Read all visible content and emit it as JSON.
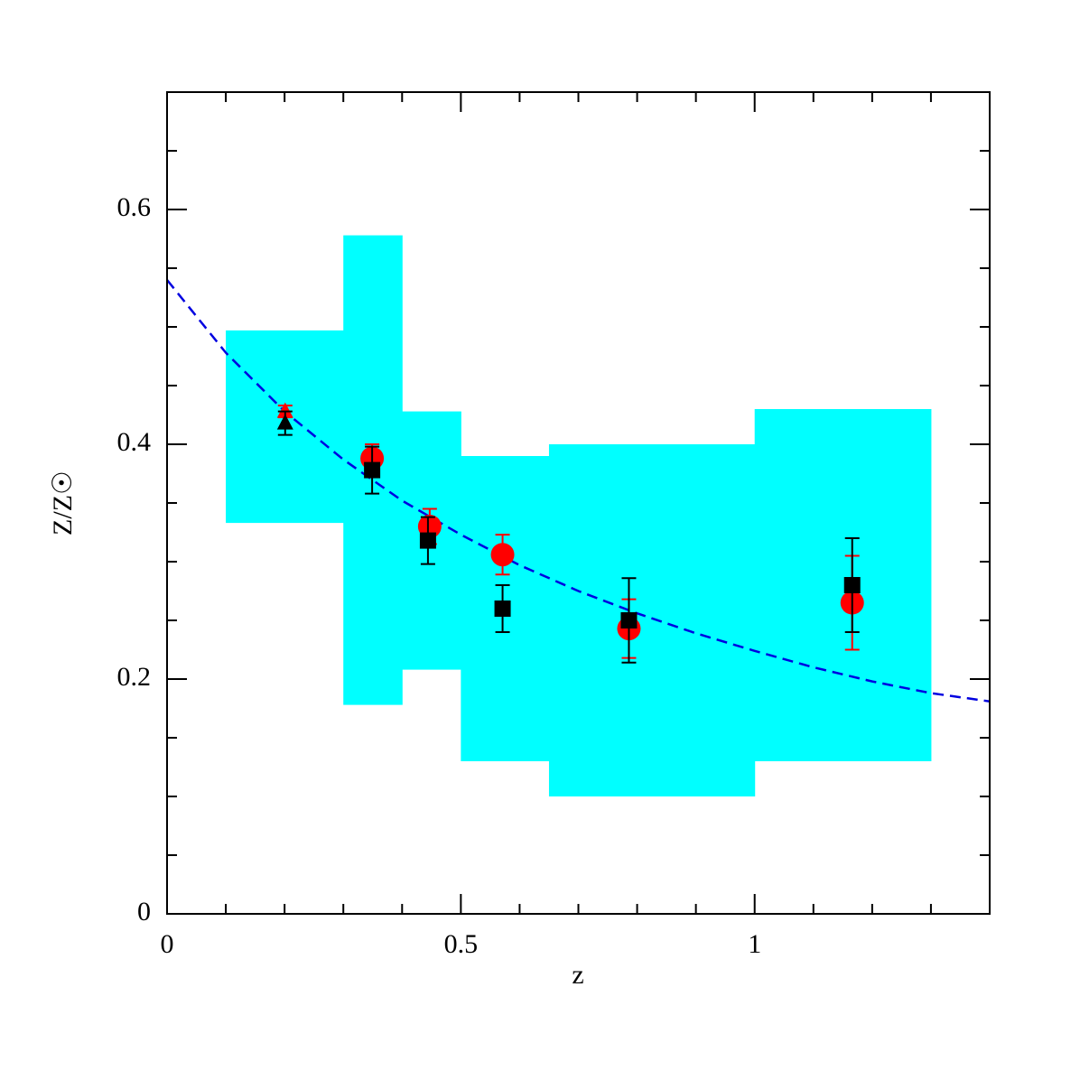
{
  "chart_data": {
    "type": "scatter",
    "xlabel": "z",
    "ylabel": "Z/Z☉",
    "xlim": [
      0,
      1.4
    ],
    "ylim": [
      0,
      0.7
    ],
    "xticks": [
      0,
      0.5,
      1
    ],
    "yticks": [
      0,
      0.2,
      0.4,
      0.6
    ],
    "xticks_minor": [
      0.1,
      0.2,
      0.3,
      0.4,
      0.6,
      0.7,
      0.8,
      0.9,
      1.1,
      1.2,
      1.3
    ],
    "yticks_minor": [
      0.05,
      0.1,
      0.15,
      0.25,
      0.3,
      0.35,
      0.45,
      0.5,
      0.55,
      0.65
    ],
    "band": {
      "color": "#00ffff",
      "bins": [
        0.1,
        0.3,
        0.4,
        0.5,
        0.65,
        1.0,
        1.3
      ],
      "lows": [
        0.333,
        0.178,
        0.208,
        0.13,
        0.1,
        0.13
      ],
      "highs": [
        0.497,
        0.578,
        0.428,
        0.39,
        0.4,
        0.43
      ]
    },
    "series": [
      {
        "type": "line",
        "color": "#0000e0",
        "dashed": true,
        "x": [
          0,
          0.1,
          0.2,
          0.3,
          0.4,
          0.5,
          0.6,
          0.7,
          0.8,
          0.9,
          1.0,
          1.1,
          1.2,
          1.3,
          1.4
        ],
        "values": [
          0.54,
          0.478,
          0.428,
          0.387,
          0.352,
          0.323,
          0.297,
          0.275,
          0.256,
          0.239,
          0.224,
          0.21,
          0.198,
          0.188,
          0.181
        ]
      },
      {
        "marker": "circle",
        "color": "#ff0000",
        "x": [
          0.349,
          0.447,
          0.571,
          0.786,
          1.166
        ],
        "values": [
          0.388,
          0.33,
          0.306,
          0.243,
          0.265
        ],
        "errors": [
          0.012,
          0.015,
          0.017,
          0.025,
          0.04
        ]
      },
      {
        "marker": "triangle",
        "color": "#ff0000",
        "x": [
          0.201
        ],
        "values": [
          0.428
        ],
        "errors": [
          0.005
        ]
      },
      {
        "marker": "square",
        "color": "#000000",
        "x": [
          0.349,
          0.444,
          0.571,
          0.786,
          1.166
        ],
        "values": [
          0.378,
          0.318,
          0.26,
          0.25,
          0.28
        ],
        "errors": [
          0.02,
          0.02,
          0.02,
          0.036,
          0.04
        ]
      },
      {
        "marker": "triangle",
        "color": "#000000",
        "x": [
          0.201
        ],
        "values": [
          0.418
        ],
        "errors": [
          0.01
        ]
      }
    ]
  }
}
